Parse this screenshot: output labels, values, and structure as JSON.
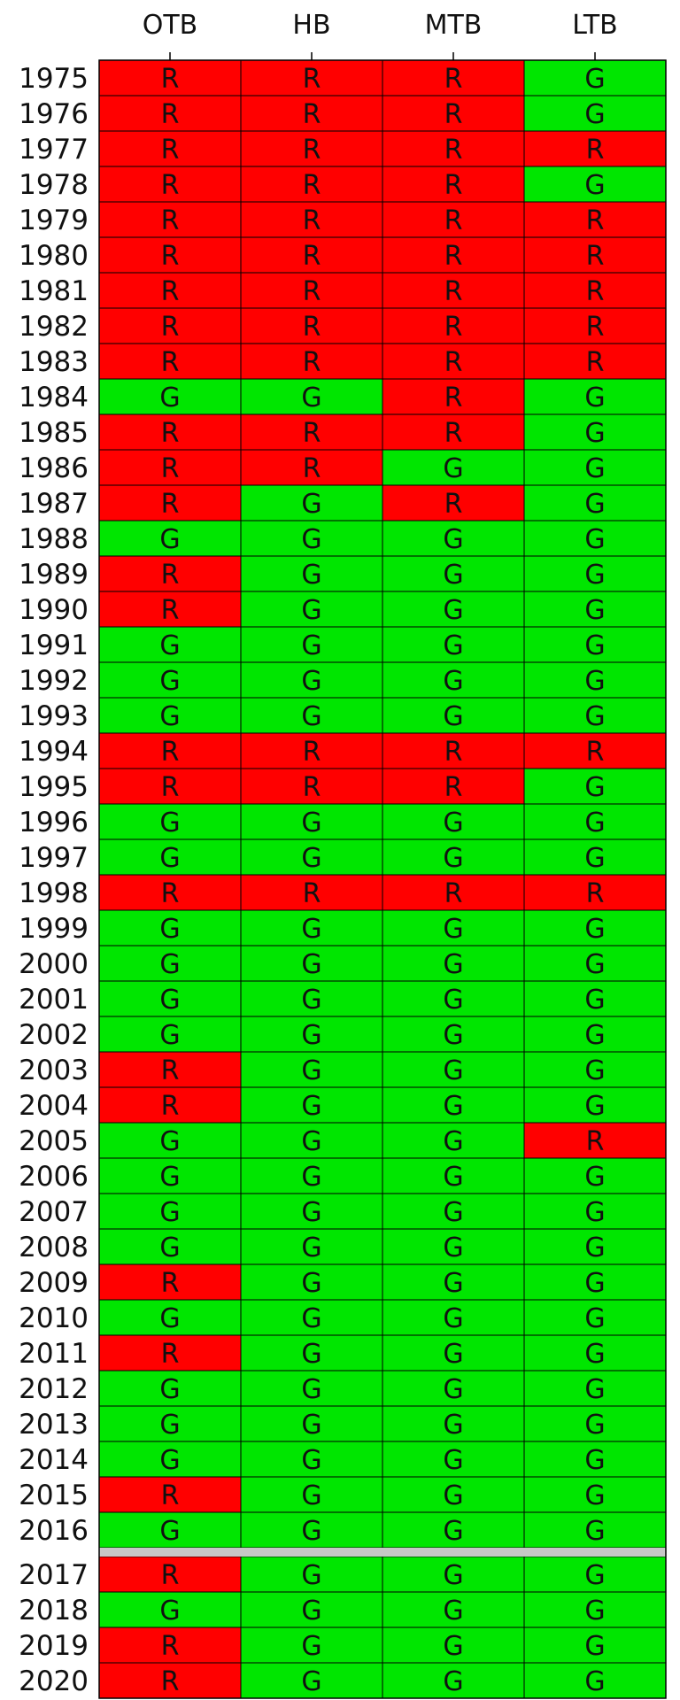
{
  "chart_data": {
    "type": "heatmap",
    "title": "",
    "xlabel": "",
    "ylabel": "",
    "columns": [
      "OTB",
      "HB",
      "MTB",
      "LTB"
    ],
    "rows": [
      "1975",
      "1976",
      "1977",
      "1978",
      "1979",
      "1980",
      "1981",
      "1982",
      "1983",
      "1984",
      "1985",
      "1986",
      "1987",
      "1988",
      "1989",
      "1990",
      "1991",
      "1992",
      "1993",
      "1994",
      "1995",
      "1996",
      "1997",
      "1998",
      "1999",
      "2000",
      "2001",
      "2002",
      "2003",
      "2004",
      "2005",
      "2006",
      "2007",
      "2008",
      "2009",
      "2010",
      "2011",
      "2012",
      "2013",
      "2014",
      "2015",
      "2016",
      "2017",
      "2018",
      "2019",
      "2020"
    ],
    "values": [
      [
        "R",
        "R",
        "R",
        "G"
      ],
      [
        "R",
        "R",
        "R",
        "G"
      ],
      [
        "R",
        "R",
        "R",
        "R"
      ],
      [
        "R",
        "R",
        "R",
        "G"
      ],
      [
        "R",
        "R",
        "R",
        "R"
      ],
      [
        "R",
        "R",
        "R",
        "R"
      ],
      [
        "R",
        "R",
        "R",
        "R"
      ],
      [
        "R",
        "R",
        "R",
        "R"
      ],
      [
        "R",
        "R",
        "R",
        "R"
      ],
      [
        "G",
        "G",
        "R",
        "G"
      ],
      [
        "R",
        "R",
        "R",
        "G"
      ],
      [
        "R",
        "R",
        "G",
        "G"
      ],
      [
        "R",
        "G",
        "R",
        "G"
      ],
      [
        "G",
        "G",
        "G",
        "G"
      ],
      [
        "R",
        "G",
        "G",
        "G"
      ],
      [
        "R",
        "G",
        "G",
        "G"
      ],
      [
        "G",
        "G",
        "G",
        "G"
      ],
      [
        "G",
        "G",
        "G",
        "G"
      ],
      [
        "G",
        "G",
        "G",
        "G"
      ],
      [
        "R",
        "R",
        "R",
        "R"
      ],
      [
        "R",
        "R",
        "R",
        "G"
      ],
      [
        "G",
        "G",
        "G",
        "G"
      ],
      [
        "G",
        "G",
        "G",
        "G"
      ],
      [
        "R",
        "R",
        "R",
        "R"
      ],
      [
        "G",
        "G",
        "G",
        "G"
      ],
      [
        "G",
        "G",
        "G",
        "G"
      ],
      [
        "G",
        "G",
        "G",
        "G"
      ],
      [
        "G",
        "G",
        "G",
        "G"
      ],
      [
        "R",
        "G",
        "G",
        "G"
      ],
      [
        "R",
        "G",
        "G",
        "G"
      ],
      [
        "G",
        "G",
        "G",
        "R"
      ],
      [
        "G",
        "G",
        "G",
        "G"
      ],
      [
        "G",
        "G",
        "G",
        "G"
      ],
      [
        "G",
        "G",
        "G",
        "G"
      ],
      [
        "R",
        "G",
        "G",
        "G"
      ],
      [
        "G",
        "G",
        "G",
        "G"
      ],
      [
        "R",
        "G",
        "G",
        "G"
      ],
      [
        "G",
        "G",
        "G",
        "G"
      ],
      [
        "G",
        "G",
        "G",
        "G"
      ],
      [
        "G",
        "G",
        "G",
        "G"
      ],
      [
        "R",
        "G",
        "G",
        "G"
      ],
      [
        "G",
        "G",
        "G",
        "G"
      ],
      [
        "R",
        "G",
        "G",
        "G"
      ],
      [
        "G",
        "G",
        "G",
        "G"
      ],
      [
        "R",
        "G",
        "G",
        "G"
      ],
      [
        "R",
        "G",
        "G",
        "G"
      ]
    ],
    "separator_after": "2016",
    "colors": {
      "R": "#ff0000",
      "G": "#00e600",
      "separator": "#c8c8c8",
      "grid": "#000000",
      "text": "#111111"
    }
  }
}
